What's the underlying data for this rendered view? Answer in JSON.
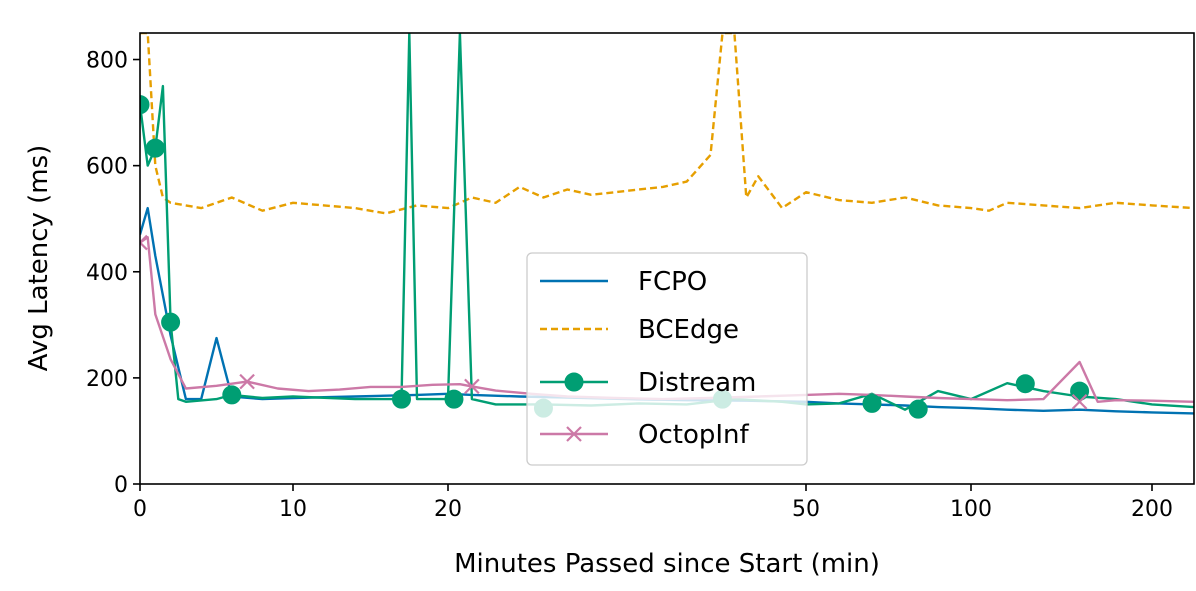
{
  "chart_data": {
    "type": "line",
    "title": "",
    "xlabel": "Minutes Passed since Start (min)",
    "ylabel": "Avg Latency (ms)",
    "ylim": [
      0,
      850
    ],
    "x_scale": "piecewise (stretched)",
    "x_ticks": [
      {
        "value": 0,
        "label": "0"
      },
      {
        "value": 10,
        "label": "10"
      },
      {
        "value": 20,
        "label": "20"
      },
      {
        "value": 50,
        "label": "50"
      },
      {
        "value": 100,
        "label": "100"
      },
      {
        "value": 200,
        "label": "200"
      }
    ],
    "y_ticks": [
      {
        "value": 0,
        "label": "0"
      },
      {
        "value": 200,
        "label": "200"
      },
      {
        "value": 400,
        "label": "400"
      },
      {
        "value": 600,
        "label": "600"
      },
      {
        "value": 800,
        "label": "800"
      }
    ],
    "legend_position": "lower-center",
    "series": [
      {
        "name": "FCPO",
        "color": "#0072b2",
        "style": "solid",
        "marker": "none",
        "points": [
          [
            0,
            470
          ],
          [
            0.5,
            520
          ],
          [
            1,
            430
          ],
          [
            2,
            280
          ],
          [
            3,
            160
          ],
          [
            4,
            160
          ],
          [
            5,
            275
          ],
          [
            6,
            165
          ],
          [
            8,
            160
          ],
          [
            10,
            162
          ],
          [
            14,
            165
          ],
          [
            18,
            168
          ],
          [
            20,
            170
          ],
          [
            22,
            168
          ],
          [
            26,
            165
          ],
          [
            30,
            163
          ],
          [
            35,
            160
          ],
          [
            40,
            158
          ],
          [
            45,
            157
          ],
          [
            50,
            155
          ],
          [
            60,
            152
          ],
          [
            70,
            150
          ],
          [
            80,
            148
          ],
          [
            90,
            145
          ],
          [
            100,
            143
          ],
          [
            120,
            140
          ],
          [
            140,
            138
          ],
          [
            160,
            140
          ],
          [
            180,
            137
          ],
          [
            200,
            135
          ],
          [
            220,
            133
          ]
        ]
      },
      {
        "name": "BCEdge",
        "color": "#e69f00",
        "style": "dashed",
        "marker": "none",
        "points": [
          [
            0,
            850
          ],
          [
            0.5,
            850
          ],
          [
            1,
            600
          ],
          [
            1.5,
            540
          ],
          [
            2,
            530
          ],
          [
            4,
            520
          ],
          [
            6,
            540
          ],
          [
            8,
            515
          ],
          [
            10,
            530
          ],
          [
            12,
            525
          ],
          [
            14,
            520
          ],
          [
            16,
            510
          ],
          [
            18,
            525
          ],
          [
            20,
            520
          ],
          [
            22,
            540
          ],
          [
            24,
            530
          ],
          [
            26,
            560
          ],
          [
            28,
            540
          ],
          [
            30,
            555
          ],
          [
            32,
            545
          ],
          [
            34,
            550
          ],
          [
            36,
            555
          ],
          [
            38,
            560
          ],
          [
            40,
            570
          ],
          [
            42,
            620
          ],
          [
            43,
            850
          ],
          [
            44,
            850
          ],
          [
            45,
            540
          ],
          [
            46,
            580
          ],
          [
            48,
            520
          ],
          [
            50,
            550
          ],
          [
            60,
            535
          ],
          [
            70,
            530
          ],
          [
            80,
            540
          ],
          [
            90,
            525
          ],
          [
            100,
            520
          ],
          [
            110,
            515
          ],
          [
            120,
            530
          ],
          [
            140,
            525
          ],
          [
            160,
            520
          ],
          [
            180,
            530
          ],
          [
            200,
            525
          ],
          [
            220,
            520
          ]
        ]
      },
      {
        "name": "Distream",
        "color": "#009e73",
        "style": "solid",
        "marker": "circle",
        "points": [
          [
            0,
            715
          ],
          [
            0.5,
            600
          ],
          [
            1,
            633
          ],
          [
            1.5,
            750
          ],
          [
            2,
            305
          ],
          [
            2.5,
            160
          ],
          [
            3,
            155
          ],
          [
            5,
            160
          ],
          [
            6,
            168
          ],
          [
            8,
            162
          ],
          [
            10,
            165
          ],
          [
            14,
            160
          ],
          [
            17,
            160
          ],
          [
            17.5,
            850
          ],
          [
            18,
            160
          ],
          [
            20,
            160
          ],
          [
            21,
            850
          ],
          [
            22,
            160
          ],
          [
            24,
            150
          ],
          [
            28,
            150
          ],
          [
            32,
            148
          ],
          [
            36,
            152
          ],
          [
            40,
            150
          ],
          [
            44,
            160
          ],
          [
            48,
            155
          ],
          [
            50,
            150
          ],
          [
            60,
            152
          ],
          [
            70,
            170
          ],
          [
            80,
            140
          ],
          [
            90,
            175
          ],
          [
            100,
            160
          ],
          [
            120,
            190
          ],
          [
            140,
            175
          ],
          [
            160,
            165
          ],
          [
            180,
            160
          ],
          [
            200,
            150
          ],
          [
            220,
            145
          ]
        ],
        "marker_points": [
          [
            0,
            715
          ],
          [
            1,
            633
          ],
          [
            2,
            305
          ],
          [
            6,
            168
          ],
          [
            17,
            160
          ],
          [
            20.5,
            160
          ],
          [
            28,
            143
          ],
          [
            43,
            160
          ],
          [
            70,
            152
          ],
          [
            84,
            141
          ],
          [
            130,
            189
          ],
          [
            160,
            175
          ]
        ]
      },
      {
        "name": "OctopInf",
        "color": "#cc79a7",
        "style": "solid",
        "marker": "x",
        "points": [
          [
            0,
            455
          ],
          [
            0.5,
            465
          ],
          [
            1,
            320
          ],
          [
            2,
            235
          ],
          [
            3,
            180
          ],
          [
            5,
            185
          ],
          [
            7,
            193
          ],
          [
            9,
            180
          ],
          [
            11,
            175
          ],
          [
            13,
            178
          ],
          [
            15,
            183
          ],
          [
            17,
            183
          ],
          [
            19,
            187
          ],
          [
            21,
            188
          ],
          [
            22,
            184
          ],
          [
            24,
            176
          ],
          [
            27,
            170
          ],
          [
            30,
            165
          ],
          [
            34,
            162
          ],
          [
            38,
            160
          ],
          [
            42,
            162
          ],
          [
            46,
            165
          ],
          [
            50,
            168
          ],
          [
            60,
            170
          ],
          [
            70,
            168
          ],
          [
            80,
            165
          ],
          [
            90,
            162
          ],
          [
            100,
            160
          ],
          [
            120,
            158
          ],
          [
            140,
            160
          ],
          [
            160,
            230
          ],
          [
            170,
            155
          ],
          [
            180,
            158
          ],
          [
            200,
            157
          ],
          [
            220,
            155
          ]
        ],
        "marker_points": [
          [
            0,
            455
          ],
          [
            7,
            193
          ],
          [
            22,
            184
          ],
          [
            160,
            155
          ]
        ]
      }
    ]
  }
}
